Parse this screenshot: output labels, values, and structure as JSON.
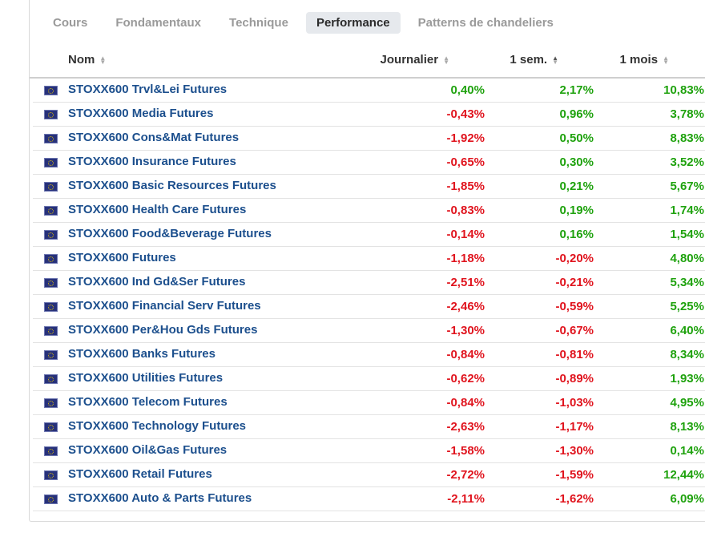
{
  "tabs": [
    {
      "label": "Cours",
      "active": false
    },
    {
      "label": "Fondamentaux",
      "active": false
    },
    {
      "label": "Technique",
      "active": false
    },
    {
      "label": "Performance",
      "active": true
    },
    {
      "label": "Patterns de chandeliers",
      "active": false
    }
  ],
  "columns": {
    "name": "Nom",
    "daily": "Journalier",
    "week": "1 sem.",
    "month": "1 mois"
  },
  "colors": {
    "positive": "#1fa20e",
    "negative": "#e0141e",
    "link": "#1c4f8d",
    "flag": "eu-flag-icon"
  },
  "rows": [
    {
      "name": "STOXX600 Trvl&Lei Futures",
      "daily": "0,40%",
      "week": "2,17%",
      "month": "10,83%"
    },
    {
      "name": "STOXX600 Media Futures",
      "daily": "-0,43%",
      "week": "0,96%",
      "month": "3,78%"
    },
    {
      "name": "STOXX600 Cons&Mat Futures",
      "daily": "-1,92%",
      "week": "0,50%",
      "month": "8,83%"
    },
    {
      "name": "STOXX600 Insurance Futures",
      "daily": "-0,65%",
      "week": "0,30%",
      "month": "3,52%"
    },
    {
      "name": "STOXX600 Basic Resources Futures",
      "daily": "-1,85%",
      "week": "0,21%",
      "month": "5,67%"
    },
    {
      "name": "STOXX600 Health Care Futures",
      "daily": "-0,83%",
      "week": "0,19%",
      "month": "1,74%"
    },
    {
      "name": "STOXX600 Food&Beverage Futures",
      "daily": "-0,14%",
      "week": "0,16%",
      "month": "1,54%"
    },
    {
      "name": "STOXX600 Futures",
      "daily": "-1,18%",
      "week": "-0,20%",
      "month": "4,80%"
    },
    {
      "name": "STOXX600 Ind Gd&Ser Futures",
      "daily": "-2,51%",
      "week": "-0,21%",
      "month": "5,34%"
    },
    {
      "name": "STOXX600 Financial Serv Futures",
      "daily": "-2,46%",
      "week": "-0,59%",
      "month": "5,25%"
    },
    {
      "name": "STOXX600 Per&Hou Gds Futures",
      "daily": "-1,30%",
      "week": "-0,67%",
      "month": "6,40%"
    },
    {
      "name": "STOXX600 Banks Futures",
      "daily": "-0,84%",
      "week": "-0,81%",
      "month": "8,34%"
    },
    {
      "name": "STOXX600 Utilities Futures",
      "daily": "-0,62%",
      "week": "-0,89%",
      "month": "1,93%"
    },
    {
      "name": "STOXX600 Telecom Futures",
      "daily": "-0,84%",
      "week": "-1,03%",
      "month": "4,95%"
    },
    {
      "name": "STOXX600 Technology Futures",
      "daily": "-2,63%",
      "week": "-1,17%",
      "month": "8,13%"
    },
    {
      "name": "STOXX600 Oil&Gas Futures",
      "daily": "-1,58%",
      "week": "-1,30%",
      "month": "0,14%"
    },
    {
      "name": "STOXX600 Retail Futures",
      "daily": "-2,72%",
      "week": "-1,59%",
      "month": "12,44%"
    },
    {
      "name": "STOXX600 Auto & Parts Futures",
      "daily": "-2,11%",
      "week": "-1,62%",
      "month": "6,09%"
    }
  ]
}
